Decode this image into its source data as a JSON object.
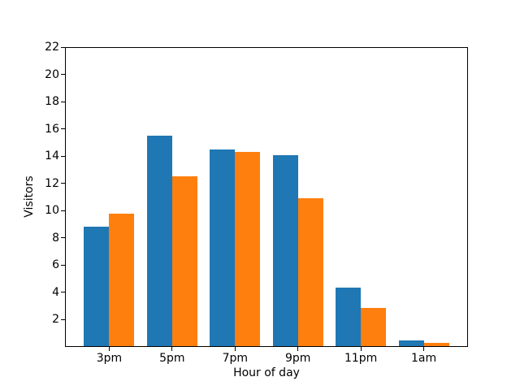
{
  "chart_data": {
    "type": "bar",
    "title": "",
    "xlabel": "Hour of day",
    "ylabel": "Visitors",
    "categories": [
      "3pm",
      "5pm",
      "7pm",
      "9pm",
      "11pm",
      "1am"
    ],
    "series": [
      {
        "name": "blue",
        "color": "#1f77b4",
        "values": [
          8.8,
          15.5,
          14.5,
          14.1,
          4.3,
          0.4
        ]
      },
      {
        "name": "orange",
        "color": "#ff7f0e",
        "values": [
          9.8,
          12.5,
          14.3,
          10.9,
          2.8,
          0.25
        ]
      }
    ],
    "ylim": [
      0,
      22
    ],
    "yticks": [
      2,
      4,
      6,
      8,
      10,
      12,
      14,
      16,
      18,
      20,
      22
    ],
    "xlim": [
      -0.69,
      5.69
    ],
    "bar_width_units": 0.4,
    "grid": false,
    "legend": "none",
    "background_color": "#ffffff",
    "axis_color": "#000000",
    "text_color": "#000000"
  }
}
